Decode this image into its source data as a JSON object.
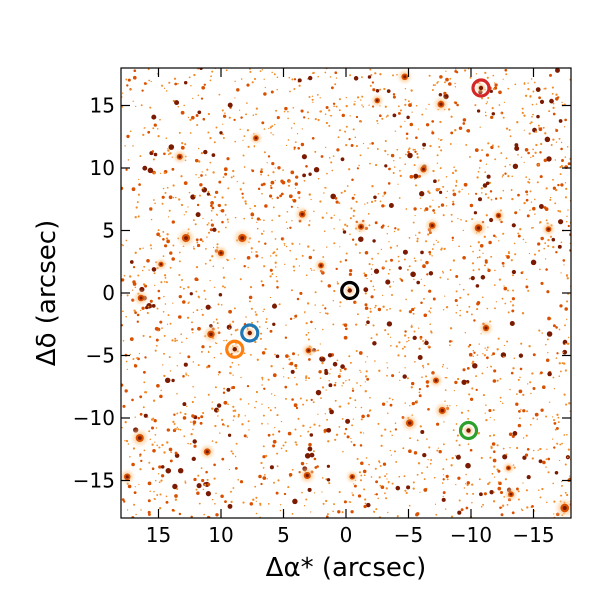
{
  "chart_data": {
    "type": "scatter",
    "title": "",
    "xlabel": "Δα* (arcsec)",
    "ylabel": "Δδ (arcsec)",
    "xlim": [
      18,
      -18
    ],
    "ylim": [
      -18,
      18
    ],
    "xticks": [
      15,
      10,
      5,
      0,
      -5,
      -10,
      -15
    ],
    "yticks": [
      -15,
      -10,
      -5,
      0,
      5,
      10,
      15
    ],
    "xtick_labels": [
      "15",
      "10",
      "5",
      "0",
      "−5",
      "−10",
      "−15"
    ],
    "ytick_labels": [
      "−15",
      "−10",
      "−5",
      "0",
      "5",
      "10",
      "15"
    ],
    "grid": false,
    "background": "dense star field rendered in orange colormap",
    "colors": {
      "field_faint": "#f28c28",
      "field_mid": "#d95000",
      "field_bright": "#7a1a00",
      "black": "#000000",
      "blue": "#1f77b4",
      "orange": "#ff7f0e",
      "green": "#2ca02c",
      "red": "#d62728"
    },
    "highlighted_sources": [
      {
        "color": "black",
        "x": -0.3,
        "y": 0.2
      },
      {
        "color": "blue",
        "x": 7.7,
        "y": -3.2
      },
      {
        "color": "orange",
        "x": 8.9,
        "y": -4.5
      },
      {
        "color": "green",
        "x": -9.8,
        "y": -11.0
      },
      {
        "color": "red",
        "x": -10.8,
        "y": 16.4
      }
    ],
    "bright_stars": [
      {
        "x": 12.8,
        "y": 4.4,
        "mag": 2.2
      },
      {
        "x": 8.3,
        "y": 4.4,
        "mag": 2.2
      },
      {
        "x": 10.0,
        "y": 3.2,
        "mag": 1.5
      },
      {
        "x": 13.3,
        "y": 10.9,
        "mag": 1.4
      },
      {
        "x": 7.2,
        "y": 12.4,
        "mag": 1.2
      },
      {
        "x": 3.5,
        "y": 6.3,
        "mag": 1.6
      },
      {
        "x": 2.0,
        "y": 2.2,
        "mag": 1.3
      },
      {
        "x": -1.2,
        "y": 5.3,
        "mag": 1.4
      },
      {
        "x": -4.7,
        "y": 17.3,
        "mag": 1.6
      },
      {
        "x": -7.6,
        "y": 15.1,
        "mag": 1.7
      },
      {
        "x": -6.2,
        "y": 9.9,
        "mag": 1.5
      },
      {
        "x": -6.9,
        "y": 5.4,
        "mag": 1.6
      },
      {
        "x": -10.6,
        "y": 5.2,
        "mag": 2.0
      },
      {
        "x": -12.2,
        "y": 6.2,
        "mag": 1.2
      },
      {
        "x": -16.2,
        "y": 5.1,
        "mag": 1.3
      },
      {
        "x": -11.2,
        "y": -2.8,
        "mag": 1.5
      },
      {
        "x": 10.8,
        "y": -3.3,
        "mag": 1.9
      },
      {
        "x": 16.4,
        "y": -0.4,
        "mag": 1.6
      },
      {
        "x": 3.0,
        "y": -4.6,
        "mag": 1.3
      },
      {
        "x": -7.2,
        "y": -7.0,
        "mag": 1.4
      },
      {
        "x": -7.7,
        "y": -9.4,
        "mag": 1.8
      },
      {
        "x": -5.1,
        "y": -10.4,
        "mag": 2.0
      },
      {
        "x": 16.5,
        "y": -11.6,
        "mag": 2.2
      },
      {
        "x": 11.1,
        "y": -12.7,
        "mag": 1.7
      },
      {
        "x": 3.1,
        "y": -14.6,
        "mag": 1.8
      },
      {
        "x": 17.5,
        "y": -14.7,
        "mag": 1.6
      },
      {
        "x": -13.2,
        "y": -16.1,
        "mag": 1.3
      },
      {
        "x": -17.5,
        "y": -17.2,
        "mag": 2.4
      },
      {
        "x": -0.5,
        "y": -14.7,
        "mag": 1.2
      },
      {
        "x": -13.0,
        "y": -14.0,
        "mag": 1.0
      },
      {
        "x": 14.8,
        "y": 2.3,
        "mag": 1.1
      },
      {
        "x": -2.5,
        "y": 15.4,
        "mag": 1.2
      }
    ]
  }
}
